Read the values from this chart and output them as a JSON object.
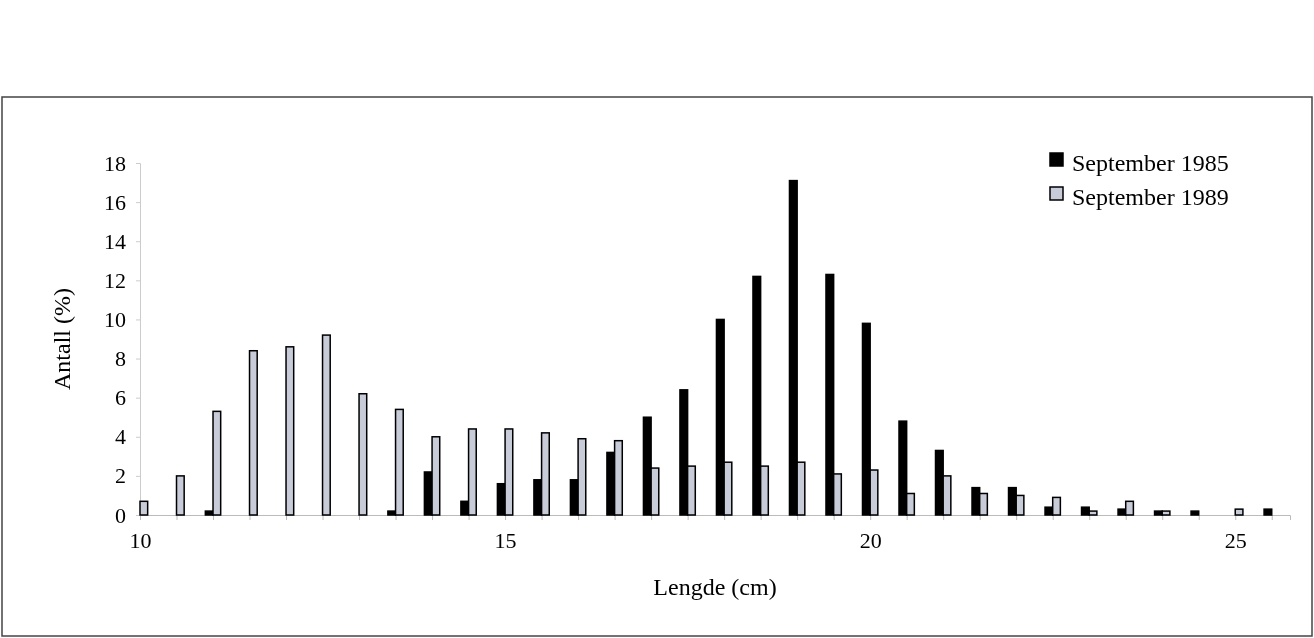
{
  "chart_data": {
    "type": "bar",
    "xlabel": "Lengde (cm)",
    "ylabel": "Antall (%)",
    "x": [
      10,
      10.5,
      11,
      11.5,
      12,
      12.5,
      13,
      13.5,
      14,
      14.5,
      15,
      15.5,
      16,
      16.5,
      17,
      17.5,
      18,
      18.5,
      19,
      19.5,
      20,
      20.5,
      21,
      21.5,
      22,
      22.5,
      23,
      23.5,
      24,
      24.5,
      25,
      25.5
    ],
    "series": [
      {
        "name": "September 1985",
        "color": "#000000",
        "values": [
          0,
          0,
          0.2,
          0,
          0,
          0,
          0,
          0.2,
          2.2,
          0.7,
          1.6,
          1.8,
          1.8,
          3.2,
          5.0,
          6.4,
          10.0,
          12.2,
          17.1,
          12.3,
          9.8,
          4.8,
          3.3,
          1.4,
          1.4,
          0.4,
          0.4,
          0.3,
          0.2,
          0.2,
          0,
          0.3
        ]
      },
      {
        "name": "September 1989",
        "color": "#c8ccd8",
        "values": [
          0.7,
          2.0,
          5.3,
          8.4,
          8.6,
          9.2,
          6.2,
          5.4,
          4.0,
          4.4,
          4.4,
          4.2,
          3.9,
          3.8,
          2.4,
          2.5,
          2.7,
          2.5,
          2.7,
          2.1,
          2.3,
          1.1,
          2.0,
          1.1,
          1.0,
          0.9,
          0.2,
          0.7,
          0.2,
          0,
          0.3,
          0
        ]
      }
    ],
    "xlim": [
      10,
      25.75
    ],
    "xticks": [
      10,
      {
        "value": 10.5,
        "label": null
      },
      {
        "value": 11,
        "label": null
      },
      {
        "value": 11.5,
        "label": null
      },
      {
        "value": 12,
        "label": null
      },
      {
        "value": 12.5,
        "label": null
      },
      {
        "value": 13,
        "label": null
      },
      {
        "value": 13.5,
        "label": null
      },
      {
        "value": 14,
        "label": null
      },
      {
        "value": 14.5,
        "label": null
      },
      15,
      {
        "value": 15.5,
        "label": null
      },
      {
        "value": 16,
        "label": null
      },
      {
        "value": 16.5,
        "label": null
      },
      {
        "value": 17,
        "label": null
      },
      {
        "value": 17.5,
        "label": null
      },
      {
        "value": 18,
        "label": null
      },
      {
        "value": 18.5,
        "label": null
      },
      {
        "value": 19,
        "label": null
      },
      {
        "value": 19.5,
        "label": null
      },
      20,
      {
        "value": 20.5,
        "label": null
      },
      {
        "value": 21,
        "label": null
      },
      {
        "value": 21.5,
        "label": null
      },
      {
        "value": 22,
        "label": null
      },
      {
        "value": 22.5,
        "label": null
      },
      {
        "value": 23,
        "label": null
      },
      {
        "value": 23.5,
        "label": null
      },
      {
        "value": 24,
        "label": null
      },
      {
        "value": 24.5,
        "label": null
      },
      25,
      {
        "value": 25.5,
        "label": null
      }
    ],
    "ylim": [
      0,
      18
    ],
    "yticks": [
      0,
      2,
      4,
      6,
      8,
      10,
      12,
      14,
      16,
      18
    ],
    "legend": "top right"
  }
}
